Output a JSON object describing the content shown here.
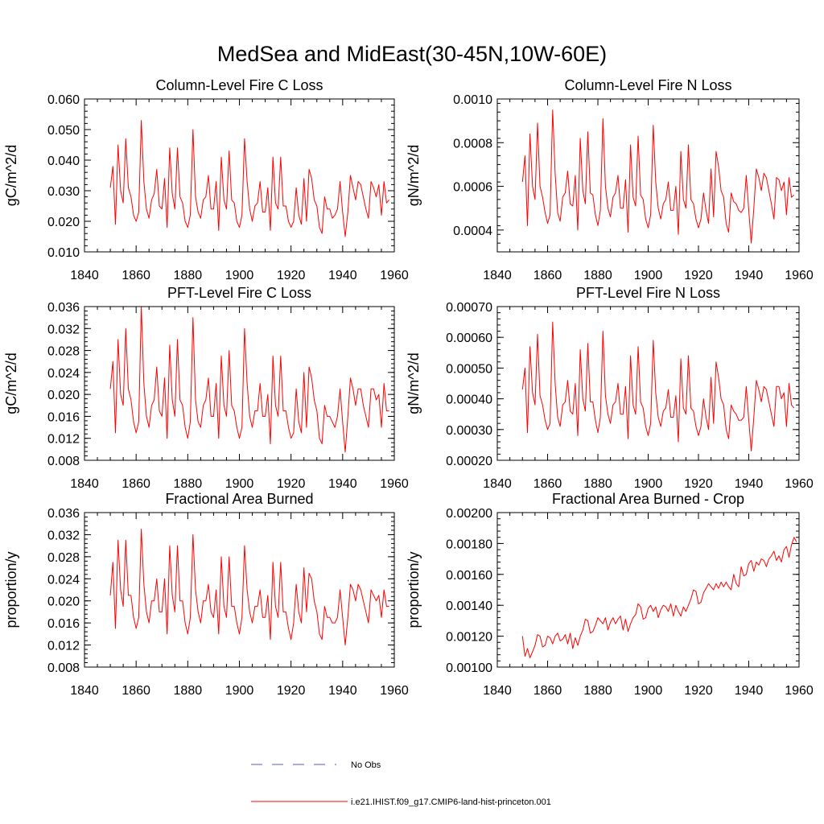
{
  "figure": {
    "title": "MedSea and MidEast(30-45N,10W-60E)"
  },
  "legend": {
    "obs_label": "No Obs",
    "obs_color": "#5a5acd",
    "model_label": "i.e21.IHIST.f09_g17.CMIP6-land-hist-princeton.001",
    "model_color": "#ff0000"
  },
  "chart_data": [
    {
      "type": "line",
      "title": "Column-Level Fire C Loss",
      "ylabel": "gC/m^2/d",
      "xlim": [
        1840,
        1960
      ],
      "xticks": [
        1840,
        1860,
        1880,
        1900,
        1920,
        1940,
        1960
      ],
      "ylim": [
        0.01,
        0.06
      ],
      "yticks": [
        "0.010",
        "0.020",
        "0.030",
        "0.040",
        "0.050",
        "0.060"
      ],
      "series": [
        {
          "color": "#ff0000",
          "x_start": 1850,
          "values": [
            0.031,
            0.038,
            0.019,
            0.045,
            0.03,
            0.026,
            0.047,
            0.031,
            0.028,
            0.022,
            0.02,
            0.023,
            0.053,
            0.033,
            0.024,
            0.021,
            0.027,
            0.029,
            0.037,
            0.025,
            0.024,
            0.034,
            0.018,
            0.044,
            0.029,
            0.024,
            0.044,
            0.028,
            0.026,
            0.02,
            0.018,
            0.022,
            0.05,
            0.028,
            0.023,
            0.021,
            0.027,
            0.028,
            0.035,
            0.024,
            0.024,
            0.033,
            0.017,
            0.041,
            0.027,
            0.024,
            0.043,
            0.027,
            0.026,
            0.02,
            0.018,
            0.022,
            0.047,
            0.033,
            0.024,
            0.02,
            0.025,
            0.026,
            0.033,
            0.023,
            0.023,
            0.031,
            0.017,
            0.041,
            0.026,
            0.024,
            0.041,
            0.025,
            0.025,
            0.02,
            0.018,
            0.02,
            0.031,
            0.022,
            0.019,
            0.034,
            0.02,
            0.037,
            0.034,
            0.027,
            0.025,
            0.018,
            0.016,
            0.028,
            0.024,
            0.024,
            0.021,
            0.022,
            0.024,
            0.033,
            0.023,
            0.015,
            0.023,
            0.035,
            0.031,
            0.027,
            0.033,
            0.032,
            0.028,
            0.024,
            0.021,
            0.033,
            0.031,
            0.028,
            0.032,
            0.022,
            0.033,
            0.026,
            0.027
          ]
        }
      ]
    },
    {
      "type": "line",
      "title": "Column-Level Fire N Loss",
      "ylabel": "gN/m^2/d",
      "xlim": [
        1840,
        1960
      ],
      "xticks": [
        1840,
        1860,
        1880,
        1900,
        1920,
        1940,
        1960
      ],
      "ylim": [
        0.0003,
        0.001
      ],
      "yticks": [
        "0.0004",
        "0.0006",
        "0.0008",
        "0.0010"
      ],
      "series": [
        {
          "color": "#ff0000",
          "x_start": 1850,
          "values": [
            0.00062,
            0.00074,
            0.00042,
            0.00084,
            0.0006,
            0.00054,
            0.00089,
            0.0006,
            0.00055,
            0.00048,
            0.00043,
            0.00047,
            0.00095,
            0.00066,
            0.00048,
            0.00044,
            0.00055,
            0.00057,
            0.00067,
            0.00052,
            0.00051,
            0.00065,
            0.0004,
            0.00082,
            0.00058,
            0.00052,
            0.00085,
            0.00057,
            0.00056,
            0.00047,
            0.00042,
            0.00049,
            0.00091,
            0.0006,
            0.0005,
            0.00046,
            0.00055,
            0.00057,
            0.00065,
            0.0005,
            0.0005,
            0.00063,
            0.00039,
            0.00079,
            0.00055,
            0.00051,
            0.00083,
            0.00056,
            0.00054,
            0.00045,
            0.00041,
            0.00047,
            0.00088,
            0.00062,
            0.0005,
            0.00045,
            0.00052,
            0.00054,
            0.00062,
            0.00049,
            0.00049,
            0.0006,
            0.00038,
            0.00076,
            0.00054,
            0.0005,
            0.00079,
            0.00054,
            0.00052,
            0.00045,
            0.00041,
            0.00045,
            0.00057,
            0.00049,
            0.00043,
            0.00068,
            0.00046,
            0.00076,
            0.00069,
            0.00058,
            0.00055,
            0.00043,
            0.00039,
            0.00057,
            0.00053,
            0.00052,
            0.00049,
            0.00048,
            0.0005,
            0.00065,
            0.00049,
            0.00034,
            0.0005,
            0.00068,
            0.00064,
            0.00058,
            0.00066,
            0.00064,
            0.00058,
            0.00052,
            0.00045,
            0.00064,
            0.00063,
            0.00058,
            0.00062,
            0.00047,
            0.00064,
            0.00055,
            0.00056
          ]
        }
      ]
    },
    {
      "type": "line",
      "title": "PFT-Level Fire C Loss",
      "ylabel": "gC/m^2/d",
      "xlim": [
        1840,
        1960
      ],
      "xticks": [
        1840,
        1860,
        1880,
        1900,
        1920,
        1940,
        1960
      ],
      "ylim": [
        0.008,
        0.036
      ],
      "yticks": [
        "0.008",
        "0.012",
        "0.016",
        "0.020",
        "0.024",
        "0.028",
        "0.032",
        "0.036"
      ],
      "series": [
        {
          "color": "#ff0000",
          "x_start": 1850,
          "values": [
            0.021,
            0.026,
            0.013,
            0.03,
            0.02,
            0.018,
            0.032,
            0.021,
            0.019,
            0.015,
            0.013,
            0.015,
            0.036,
            0.022,
            0.016,
            0.014,
            0.018,
            0.019,
            0.025,
            0.017,
            0.016,
            0.023,
            0.012,
            0.029,
            0.019,
            0.016,
            0.03,
            0.019,
            0.018,
            0.014,
            0.012,
            0.015,
            0.034,
            0.019,
            0.015,
            0.014,
            0.018,
            0.019,
            0.023,
            0.016,
            0.016,
            0.022,
            0.012,
            0.027,
            0.018,
            0.016,
            0.028,
            0.018,
            0.017,
            0.014,
            0.012,
            0.014,
            0.032,
            0.022,
            0.016,
            0.014,
            0.017,
            0.017,
            0.022,
            0.016,
            0.016,
            0.02,
            0.011,
            0.027,
            0.018,
            0.016,
            0.027,
            0.017,
            0.017,
            0.014,
            0.012,
            0.013,
            0.021,
            0.015,
            0.013,
            0.024,
            0.014,
            0.025,
            0.023,
            0.019,
            0.017,
            0.012,
            0.011,
            0.018,
            0.016,
            0.016,
            0.015,
            0.014,
            0.016,
            0.021,
            0.015,
            0.0095,
            0.016,
            0.023,
            0.021,
            0.018,
            0.021,
            0.021,
            0.018,
            0.016,
            0.014,
            0.021,
            0.021,
            0.019,
            0.02,
            0.014,
            0.022,
            0.017,
            0.017
          ]
        }
      ]
    },
    {
      "type": "line",
      "title": "PFT-Level Fire N Loss",
      "ylabel": "gN/m^2/d",
      "xlim": [
        1840,
        1960
      ],
      "xticks": [
        1840,
        1860,
        1880,
        1900,
        1920,
        1940,
        1960
      ],
      "ylim": [
        0.0002,
        0.0007
      ],
      "yticks": [
        "0.00020",
        "0.00030",
        "0.00040",
        "0.00050",
        "0.00060",
        "0.00070"
      ],
      "series": [
        {
          "color": "#ff0000",
          "x_start": 1850,
          "values": [
            0.00043,
            0.0005,
            0.00029,
            0.00057,
            0.00042,
            0.00038,
            0.00061,
            0.00041,
            0.00038,
            0.00033,
            0.0003,
            0.00032,
            0.00065,
            0.00045,
            0.00034,
            0.00031,
            0.00038,
            0.00039,
            0.00046,
            0.00036,
            0.00035,
            0.00045,
            0.00028,
            0.00056,
            0.0004,
            0.00036,
            0.00058,
            0.00039,
            0.00039,
            0.00033,
            0.00029,
            0.00034,
            0.00062,
            0.00041,
            0.00035,
            0.00032,
            0.00038,
            0.00039,
            0.00045,
            0.00035,
            0.00035,
            0.00044,
            0.00027,
            0.00054,
            0.00038,
            0.00035,
            0.00057,
            0.00039,
            0.00037,
            0.00031,
            0.00028,
            0.00032,
            0.00059,
            0.00042,
            0.00034,
            0.00031,
            0.00036,
            0.00037,
            0.00043,
            0.00034,
            0.00034,
            0.00041,
            0.00026,
            0.00053,
            0.00037,
            0.00035,
            0.00054,
            0.00037,
            0.00036,
            0.00031,
            0.00028,
            0.00031,
            0.0004,
            0.00034,
            0.0003,
            0.00047,
            0.00032,
            0.00052,
            0.00047,
            0.0004,
            0.00038,
            0.0003,
            0.00027,
            0.00038,
            0.00036,
            0.00035,
            0.00033,
            0.00033,
            0.00034,
            0.00044,
            0.00033,
            0.00023,
            0.00034,
            0.00046,
            0.00043,
            0.00039,
            0.00044,
            0.00043,
            0.00039,
            0.00035,
            0.00031,
            0.00044,
            0.00044,
            0.0004,
            0.00042,
            0.00031,
            0.00045,
            0.00038,
            0.00037
          ]
        }
      ]
    },
    {
      "type": "line",
      "title": "Fractional Area Burned",
      "ylabel": "proportion/y",
      "xlim": [
        1840,
        1960
      ],
      "xticks": [
        1840,
        1860,
        1880,
        1900,
        1920,
        1940,
        1960
      ],
      "ylim": [
        0.008,
        0.036
      ],
      "yticks": [
        "0.008",
        "0.012",
        "0.016",
        "0.020",
        "0.024",
        "0.028",
        "0.032",
        "0.036"
      ],
      "series": [
        {
          "color": "#ff0000",
          "x_start": 1850,
          "values": [
            0.021,
            0.027,
            0.015,
            0.031,
            0.022,
            0.019,
            0.031,
            0.021,
            0.021,
            0.017,
            0.015,
            0.017,
            0.033,
            0.023,
            0.018,
            0.016,
            0.02,
            0.02,
            0.024,
            0.018,
            0.018,
            0.024,
            0.014,
            0.03,
            0.021,
            0.018,
            0.03,
            0.02,
            0.02,
            0.016,
            0.014,
            0.017,
            0.032,
            0.022,
            0.018,
            0.016,
            0.02,
            0.02,
            0.023,
            0.018,
            0.017,
            0.022,
            0.014,
            0.028,
            0.019,
            0.017,
            0.028,
            0.019,
            0.019,
            0.016,
            0.014,
            0.017,
            0.03,
            0.022,
            0.018,
            0.016,
            0.019,
            0.019,
            0.022,
            0.017,
            0.017,
            0.021,
            0.013,
            0.027,
            0.019,
            0.017,
            0.027,
            0.018,
            0.018,
            0.015,
            0.013,
            0.016,
            0.023,
            0.018,
            0.016,
            0.026,
            0.018,
            0.025,
            0.024,
            0.02,
            0.018,
            0.014,
            0.013,
            0.019,
            0.017,
            0.017,
            0.016,
            0.016,
            0.017,
            0.022,
            0.017,
            0.012,
            0.017,
            0.023,
            0.022,
            0.02,
            0.023,
            0.022,
            0.02,
            0.018,
            0.016,
            0.022,
            0.021,
            0.02,
            0.021,
            0.017,
            0.022,
            0.019,
            0.019
          ]
        }
      ]
    },
    {
      "type": "line",
      "title": "Fractional Area Burned - Crop",
      "ylabel": "proportion/y",
      "xlim": [
        1840,
        1960
      ],
      "xticks": [
        1840,
        1860,
        1880,
        1900,
        1920,
        1940,
        1960
      ],
      "ylim": [
        0.001,
        0.002
      ],
      "yticks": [
        "0.00100",
        "0.00120",
        "0.00140",
        "0.00160",
        "0.00180",
        "0.00200"
      ],
      "series": [
        {
          "color": "#ff0000",
          "x_start": 1850,
          "values": [
            0.0012,
            0.00107,
            0.00112,
            0.00106,
            0.0011,
            0.00114,
            0.00121,
            0.0012,
            0.00113,
            0.00114,
            0.0012,
            0.00119,
            0.00115,
            0.0012,
            0.00122,
            0.00117,
            0.00118,
            0.00121,
            0.00115,
            0.00122,
            0.00112,
            0.00119,
            0.00114,
            0.0012,
            0.00124,
            0.00131,
            0.0013,
            0.00122,
            0.00123,
            0.00127,
            0.00132,
            0.0013,
            0.00128,
            0.00132,
            0.00124,
            0.00129,
            0.00132,
            0.00128,
            0.00131,
            0.00133,
            0.00124,
            0.00131,
            0.00123,
            0.00128,
            0.00132,
            0.00134,
            0.00141,
            0.00139,
            0.00131,
            0.00132,
            0.00138,
            0.0014,
            0.00136,
            0.00139,
            0.00132,
            0.00137,
            0.0014,
            0.00139,
            0.00136,
            0.00141,
            0.00133,
            0.0014,
            0.00136,
            0.00133,
            0.00139,
            0.00136,
            0.0014,
            0.00144,
            0.0015,
            0.00149,
            0.00141,
            0.00142,
            0.00148,
            0.00151,
            0.00154,
            0.00152,
            0.0015,
            0.00154,
            0.00151,
            0.00155,
            0.00152,
            0.00155,
            0.00152,
            0.0015,
            0.0016,
            0.00154,
            0.00152,
            0.00165,
            0.00159,
            0.0016,
            0.00167,
            0.00169,
            0.00162,
            0.00168,
            0.00166,
            0.0017,
            0.00169,
            0.00165,
            0.0017,
            0.00172,
            0.00175,
            0.00169,
            0.00172,
            0.00168,
            0.00176,
            0.00178,
            0.00171,
            0.00179,
            0.00184,
            0.00181
          ]
        }
      ]
    }
  ]
}
